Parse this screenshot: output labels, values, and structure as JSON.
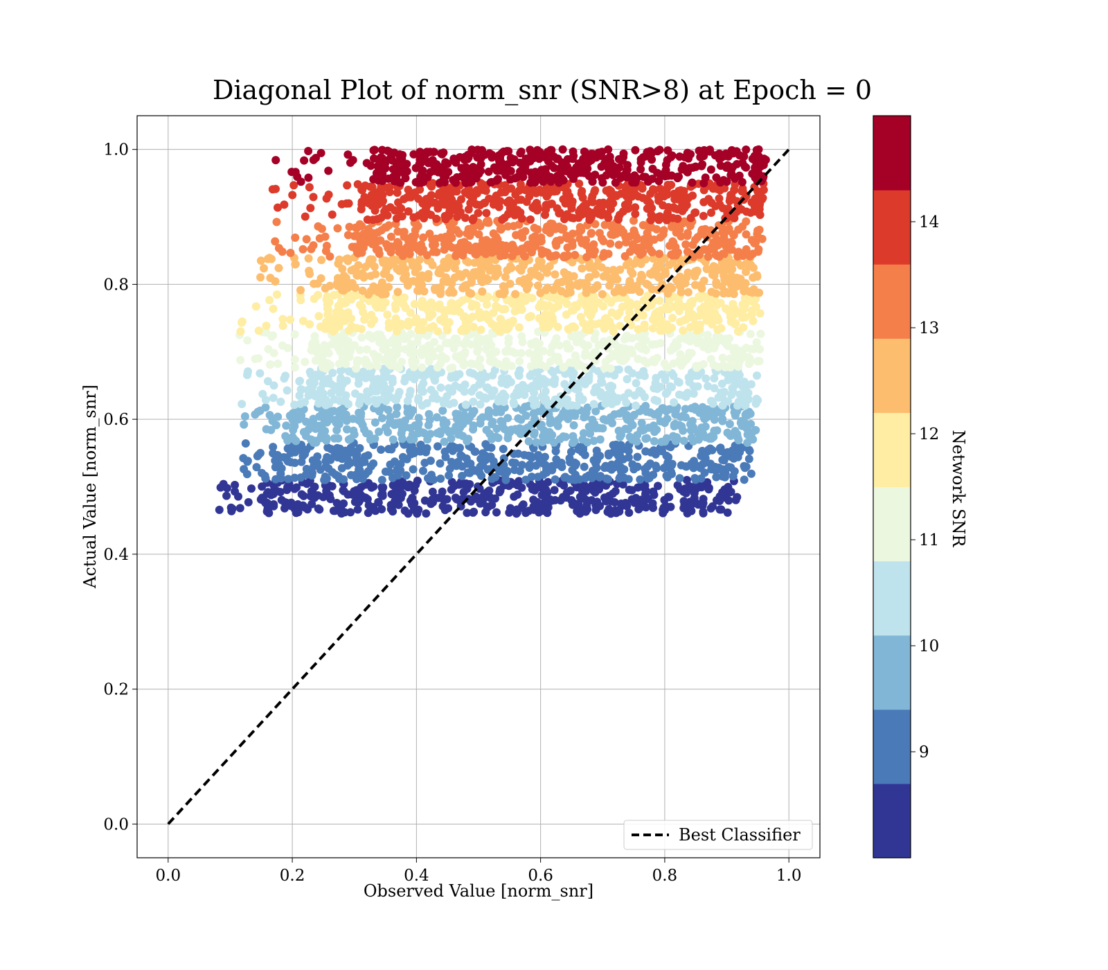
{
  "chart_data": {
    "type": "scatter",
    "title": "Diagonal Plot of norm_snr (SNR>8) at Epoch = 0",
    "xlabel": "Observed Value [norm_snr]",
    "ylabel": "Actual Value [norm_snr]",
    "xlim": [
      -0.05,
      1.05
    ],
    "ylim": [
      -0.05,
      1.05
    ],
    "x_ticks": [
      "0.0",
      "0.2",
      "0.4",
      "0.6",
      "0.8",
      "1.0"
    ],
    "y_ticks": [
      "0.0",
      "0.2",
      "0.4",
      "0.6",
      "0.8",
      "1.0"
    ],
    "grid": true,
    "legend": {
      "position": "lower-right",
      "entries": [
        "Best Classifier"
      ]
    },
    "reference_line": {
      "name": "Best Classifier",
      "x": [
        0,
        1
      ],
      "y": [
        0,
        1
      ],
      "style": "dashed",
      "color": "#000000"
    },
    "colorbar": {
      "label": "Network SNR",
      "range": [
        8,
        15
      ],
      "tick_labels": [
        "9",
        "10",
        "11",
        "12",
        "13",
        "14"
      ],
      "tick_values": [
        9,
        10,
        11,
        12,
        13,
        14
      ],
      "bins": [
        {
          "from": 8.0,
          "to": 8.7,
          "color": "#313695"
        },
        {
          "from": 8.7,
          "to": 9.4,
          "color": "#4a7ab7"
        },
        {
          "from": 9.4,
          "to": 10.1,
          "color": "#81b6d6"
        },
        {
          "from": 10.1,
          "to": 10.8,
          "color": "#bfe3ed"
        },
        {
          "from": 10.8,
          "to": 11.5,
          "color": "#ecf7e0"
        },
        {
          "from": 11.5,
          "to": 12.2,
          "color": "#feeda2"
        },
        {
          "from": 12.2,
          "to": 12.9,
          "color": "#fdbd6e"
        },
        {
          "from": 12.9,
          "to": 13.6,
          "color": "#f47f4a"
        },
        {
          "from": 13.6,
          "to": 14.3,
          "color": "#dc3a2b"
        },
        {
          "from": 14.3,
          "to": 15.0,
          "color": "#a50026"
        }
      ]
    },
    "series": [
      {
        "y_range": [
          0.46,
          0.51
        ],
        "x_range": [
          0.08,
          0.93
        ],
        "color": "#313695"
      },
      {
        "y_range": [
          0.51,
          0.565
        ],
        "x_range": [
          0.12,
          0.95
        ],
        "color": "#4a7ab7"
      },
      {
        "y_range": [
          0.565,
          0.62
        ],
        "x_range": [
          0.12,
          0.96
        ],
        "color": "#81b6d6"
      },
      {
        "y_range": [
          0.62,
          0.675
        ],
        "x_range": [
          0.11,
          0.96
        ],
        "color": "#bfe3ed"
      },
      {
        "y_range": [
          0.675,
          0.73
        ],
        "x_range": [
          0.11,
          0.965
        ],
        "color": "#ecf7e0"
      },
      {
        "y_range": [
          0.73,
          0.785
        ],
        "x_range": [
          0.11,
          0.965
        ],
        "color": "#feeda2"
      },
      {
        "y_range": [
          0.785,
          0.84
        ],
        "x_range": [
          0.14,
          0.965
        ],
        "color": "#fdbd6e"
      },
      {
        "y_range": [
          0.84,
          0.895
        ],
        "x_range": [
          0.16,
          0.97
        ],
        "color": "#f47f4a"
      },
      {
        "y_range": [
          0.895,
          0.95
        ],
        "x_range": [
          0.16,
          0.97
        ],
        "color": "#dc3a2b"
      },
      {
        "y_range": [
          0.95,
          1.0
        ],
        "x_range": [
          0.17,
          0.975
        ],
        "color": "#a50026"
      }
    ]
  }
}
